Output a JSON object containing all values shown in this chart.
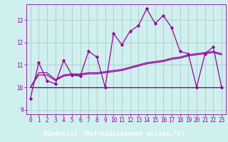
{
  "title": "",
  "xlabel": "Windchill (Refroidissement éolien,°C)",
  "ylabel": "",
  "bg_color": "#cff0ee",
  "plot_bg_color": "#cff0ee",
  "xlabel_bg_color": "#660066",
  "grid_color": "#aacccc",
  "line_color": "#990099",
  "hours": [
    0,
    1,
    2,
    3,
    4,
    5,
    6,
    7,
    8,
    9,
    10,
    11,
    12,
    13,
    14,
    15,
    16,
    17,
    18,
    19,
    20,
    21,
    22,
    23
  ],
  "main_line": [
    9.5,
    11.1,
    10.3,
    10.15,
    11.2,
    10.55,
    10.5,
    11.6,
    11.35,
    10.0,
    12.4,
    11.9,
    12.5,
    12.75,
    13.5,
    12.85,
    13.2,
    12.65,
    11.6,
    11.5,
    10.0,
    11.5,
    11.8,
    10.0
  ],
  "trend_line1": [
    10.0,
    10.65,
    10.65,
    10.35,
    10.55,
    10.6,
    10.6,
    10.65,
    10.65,
    10.7,
    10.75,
    10.8,
    10.9,
    11.0,
    11.1,
    11.15,
    11.2,
    11.3,
    11.35,
    11.45,
    11.5,
    11.55,
    11.6,
    11.5
  ],
  "trend_line2": [
    10.0,
    10.55,
    10.55,
    10.3,
    10.5,
    10.55,
    10.55,
    10.6,
    10.6,
    10.65,
    10.7,
    10.75,
    10.85,
    10.95,
    11.05,
    11.1,
    11.15,
    11.25,
    11.3,
    11.4,
    11.45,
    11.5,
    11.55,
    11.45
  ],
  "flat_line_x": [
    0,
    1,
    2,
    3,
    4,
    5,
    6,
    7,
    8,
    9,
    10,
    11,
    12,
    13,
    14,
    15,
    16,
    17,
    18,
    19,
    20,
    21,
    22,
    23
  ],
  "flat_line_y": [
    10.0,
    10.0,
    10.0,
    10.0,
    10.0,
    10.0,
    10.0,
    10.0,
    10.0,
    10.0,
    10.0,
    10.0,
    10.0,
    10.0,
    10.0,
    10.0,
    10.0,
    10.0,
    10.0,
    10.0,
    10.0,
    10.0,
    10.0,
    10.0
  ],
  "ylim": [
    8.8,
    13.7
  ],
  "yticks": [
    9,
    10,
    11,
    12,
    13
  ],
  "xticks": [
    0,
    1,
    2,
    3,
    4,
    5,
    6,
    7,
    8,
    9,
    10,
    11,
    12,
    13,
    14,
    15,
    16,
    17,
    18,
    19,
    20,
    21,
    22,
    23
  ],
  "tick_fontsize": 5.5,
  "xlabel_fontsize": 6.5,
  "marker": "D",
  "marker_size": 1.8,
  "linewidth": 0.9
}
